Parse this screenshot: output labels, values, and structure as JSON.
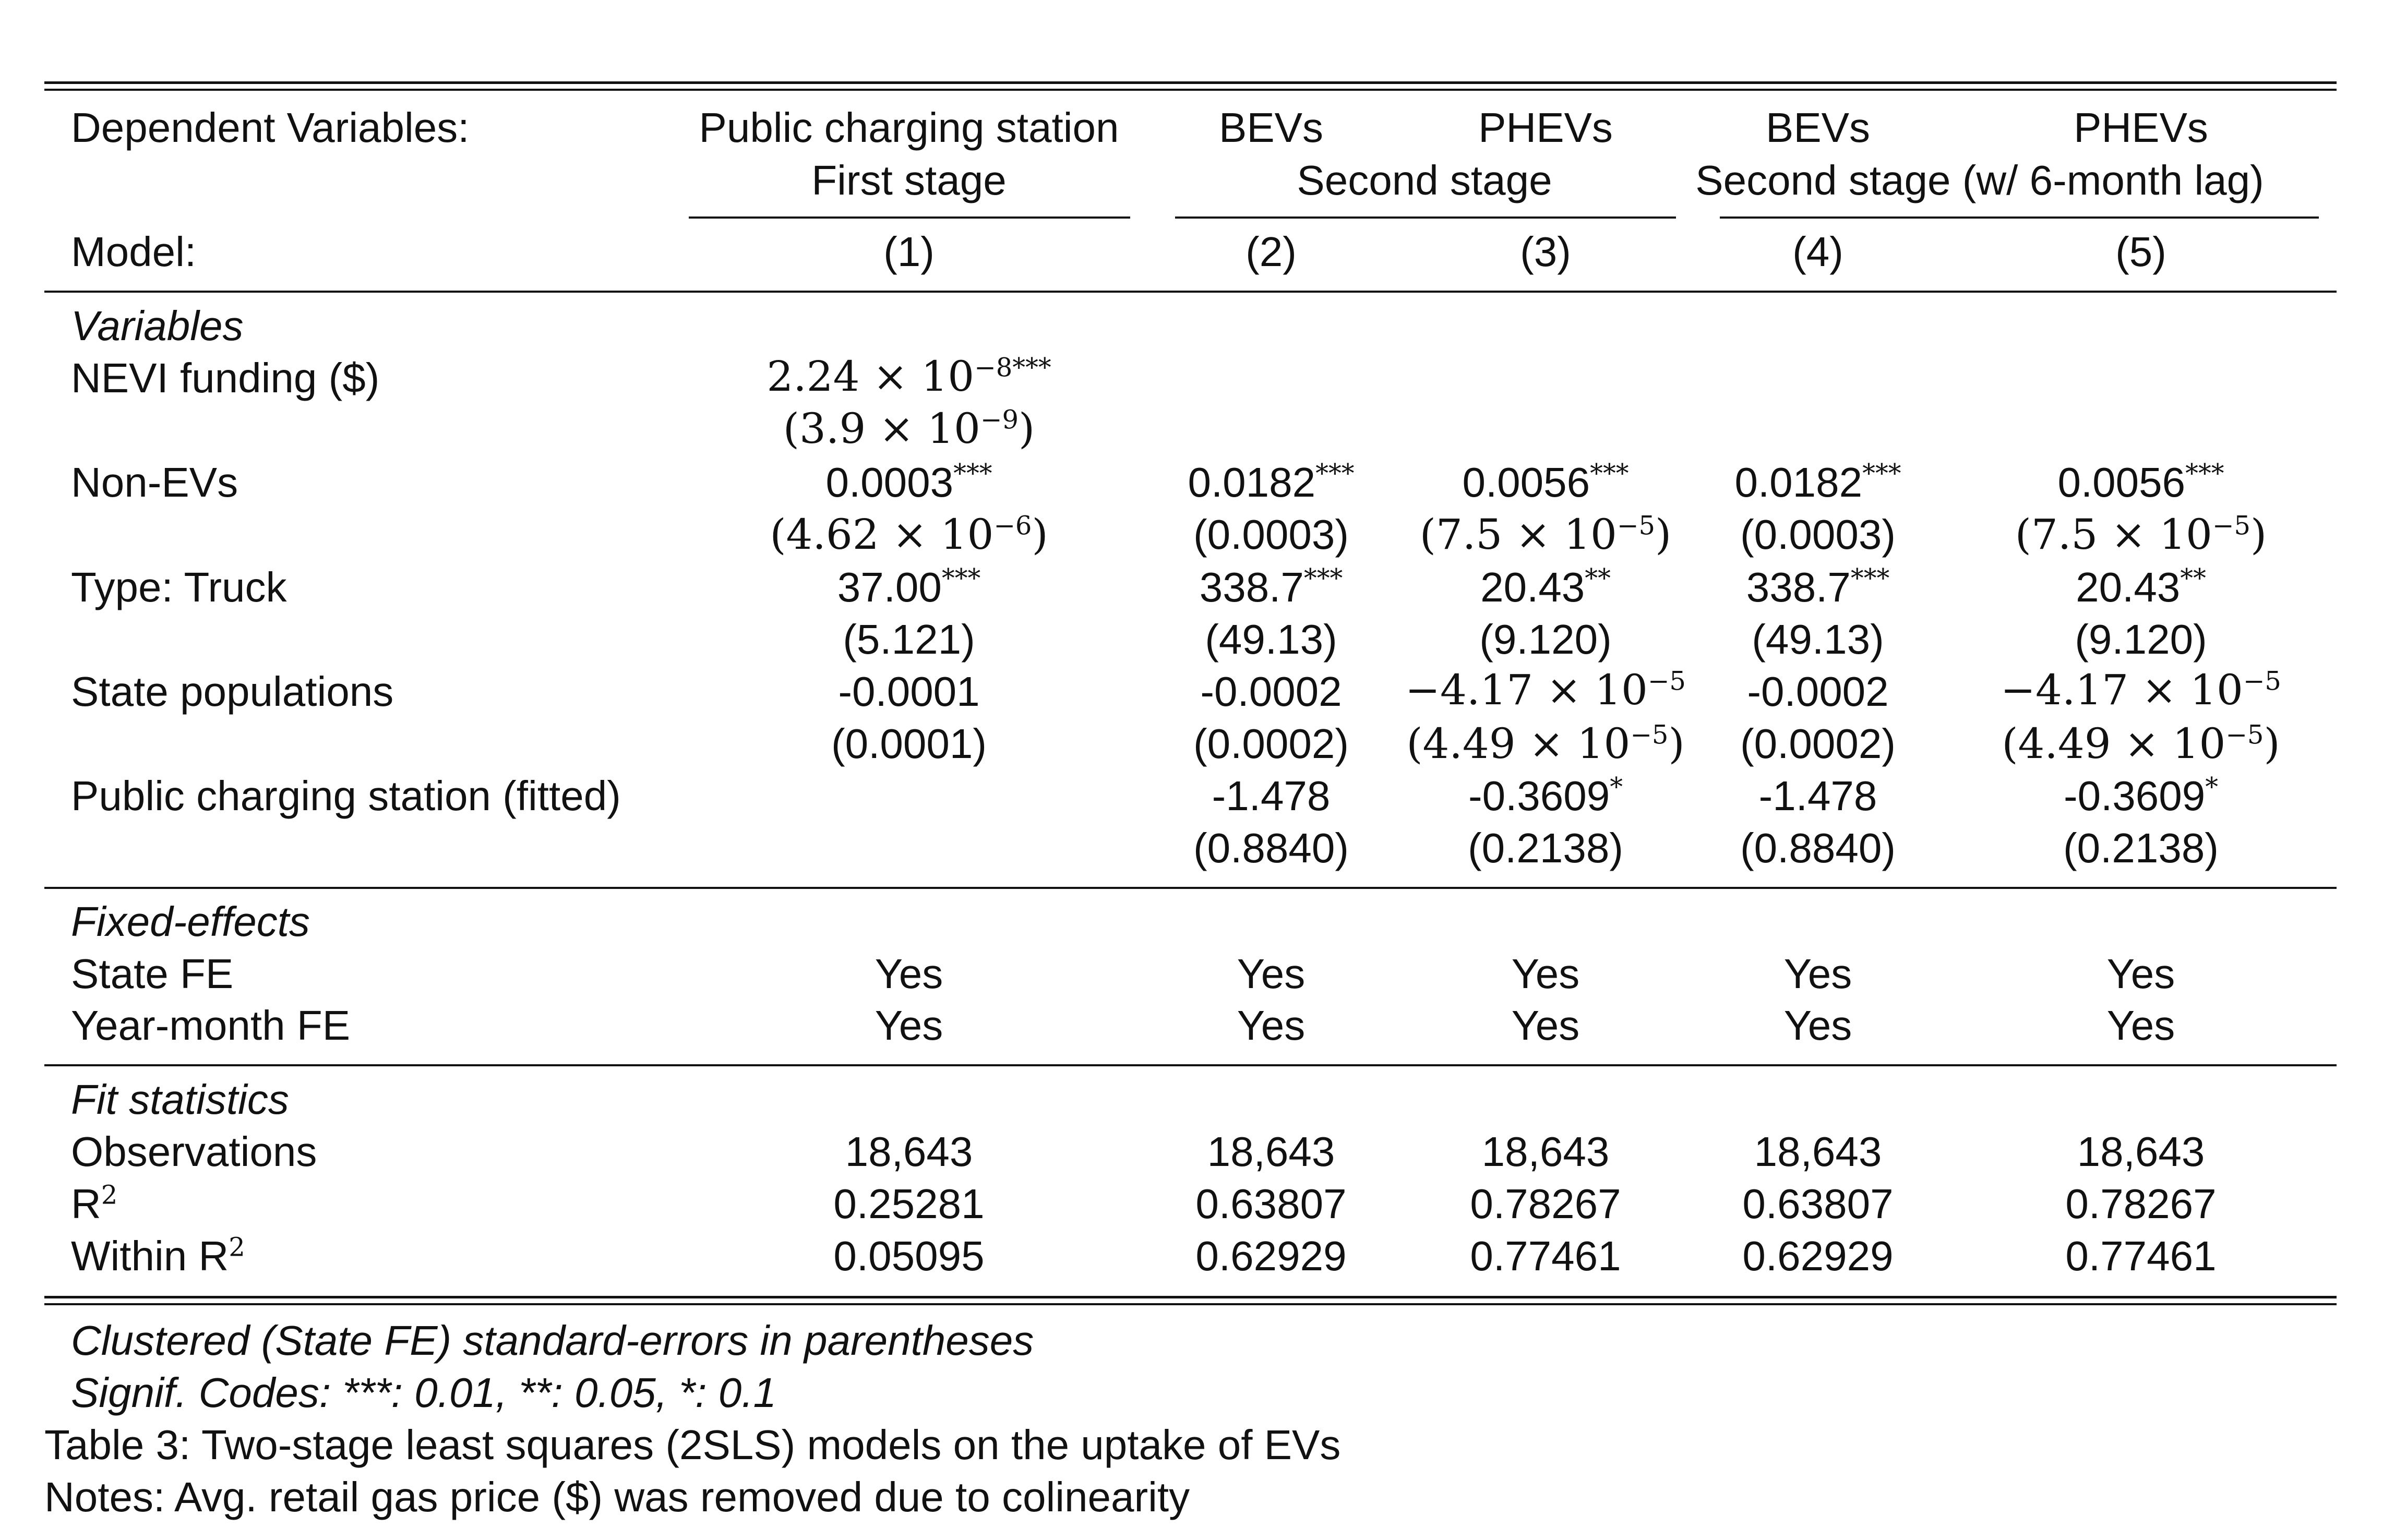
{
  "header": {
    "dep_label": "Dependent Variables:",
    "col1_line1": "Public charging station",
    "col1_line2": "First stage",
    "col2": "BEVs",
    "col3": "PHEVs",
    "group23": "Second stage",
    "col4": "BEVs",
    "col5": "PHEVs",
    "group45": "Second stage (w/ 6-month lag)",
    "model_label": "Model:",
    "models": [
      "(1)",
      "(2)",
      "(3)",
      "(4)",
      "(5)"
    ]
  },
  "sections": {
    "variables": "Variables",
    "fixed_effects": "Fixed-effects",
    "fit_statistics": "Fit statistics"
  },
  "rows": {
    "nevi": {
      "label": "NEVI funding ($)",
      "c1": {
        "coef_base": "2.24 × 10",
        "coef_exp": "−8",
        "coef_stars": "***",
        "se_base": "(3.9 × 10",
        "se_exp": "−9",
        "se_close": ")"
      }
    },
    "nonev": {
      "label": "Non-EVs",
      "c1": {
        "coef": "0.0003",
        "stars": "***",
        "se_base": "(4.62 × 10",
        "se_exp": "−6",
        "se_close": ")"
      },
      "c2": {
        "coef": "0.0182",
        "stars": "***",
        "se": "(0.0003)"
      },
      "c3": {
        "coef": "0.0056",
        "stars": "***",
        "se_base": "(7.5 × 10",
        "se_exp": "−5",
        "se_close": ")"
      },
      "c4": {
        "coef": "0.0182",
        "stars": "***",
        "se": "(0.0003)"
      },
      "c5": {
        "coef": "0.0056",
        "stars": "***",
        "se_base": "(7.5 × 10",
        "se_exp": "−5",
        "se_close": ")"
      }
    },
    "truck": {
      "label": "Type: Truck",
      "c1": {
        "coef": "37.00",
        "stars": "***",
        "se": "(5.121)"
      },
      "c2": {
        "coef": "338.7",
        "stars": "***",
        "se": "(49.13)"
      },
      "c3": {
        "coef": "20.43",
        "stars": "**",
        "se": "(9.120)"
      },
      "c4": {
        "coef": "338.7",
        "stars": "***",
        "se": "(49.13)"
      },
      "c5": {
        "coef": "20.43",
        "stars": "**",
        "se": "(9.120)"
      }
    },
    "statepop": {
      "label": "State populations",
      "c1": {
        "coef": "-0.0001",
        "se": "(0.0001)"
      },
      "c2": {
        "coef": "-0.0002",
        "se": "(0.0002)"
      },
      "c3": {
        "coef_base": "−4.17 × 10",
        "coef_exp": "−5",
        "se_base": "(4.49 × 10",
        "se_exp": "−5",
        "se_close": ")"
      },
      "c4": {
        "coef": "-0.0002",
        "se": "(0.0002)"
      },
      "c5": {
        "coef_base": "−4.17 × 10",
        "coef_exp": "−5",
        "se_base": "(4.49 × 10",
        "se_exp": "−5",
        "se_close": ")"
      }
    },
    "fitted": {
      "label": "Public charging station (fitted)",
      "c2": {
        "coef": "-1.478",
        "se": "(0.8840)"
      },
      "c3": {
        "coef": "-0.3609",
        "stars": "*",
        "se": "(0.2138)"
      },
      "c4": {
        "coef": "-1.478",
        "se": "(0.8840)"
      },
      "c5": {
        "coef": "-0.3609",
        "stars": "*",
        "se": "(0.2138)"
      }
    },
    "statefe": {
      "label": "State FE",
      "values": [
        "Yes",
        "Yes",
        "Yes",
        "Yes",
        "Yes"
      ]
    },
    "ymfe": {
      "label": "Year-month FE",
      "values": [
        "Yes",
        "Yes",
        "Yes",
        "Yes",
        "Yes"
      ]
    },
    "obs": {
      "label": "Observations",
      "values": [
        "18,643",
        "18,643",
        "18,643",
        "18,643",
        "18,643"
      ]
    },
    "r2": {
      "label_base": "R",
      "label_exp": "2",
      "values": [
        "0.25281",
        "0.63807",
        "0.78267",
        "0.63807",
        "0.78267"
      ]
    },
    "withinr2": {
      "label_base": "Within R",
      "label_exp": "2",
      "values": [
        "0.05095",
        "0.62929",
        "0.77461",
        "0.62929",
        "0.77461"
      ]
    }
  },
  "footer": {
    "note1": "Clustered (State FE) standard-errors in parentheses",
    "note2": "Signif. Codes: ***: 0.01, **: 0.05, *: 0.1",
    "caption": "Table 3: Two-stage least squares (2SLS) models on the uptake of EVs",
    "notes": "Notes: Avg. retail gas price ($) was removed due to colinearity"
  }
}
